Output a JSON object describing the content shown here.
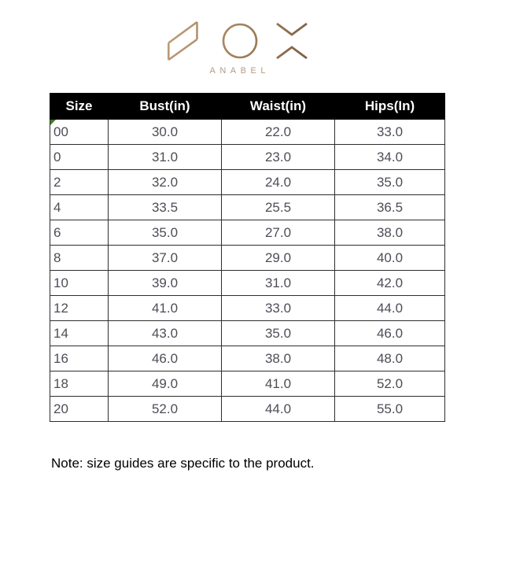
{
  "brand": {
    "logo_text": "NOX",
    "subtitle": "ANABEL",
    "logo_color_start": "#bf9c78",
    "logo_color_end": "#7d5e43",
    "subtitle_color": "#b49a84"
  },
  "size_chart": {
    "columns": [
      "Size",
      "Bust(in)",
      "Waist(in)",
      "Hips(In)"
    ],
    "rows": [
      {
        "size": "00",
        "bust": "30.0",
        "waist": "22.0",
        "hips": "33.0",
        "has_marker": true
      },
      {
        "size": "0",
        "bust": "31.0",
        "waist": "23.0",
        "hips": "34.0"
      },
      {
        "size": "2",
        "bust": "32.0",
        "waist": "24.0",
        "hips": "35.0"
      },
      {
        "size": "4",
        "bust": "33.5",
        "waist": "25.5",
        "hips": "36.5"
      },
      {
        "size": "6",
        "bust": "35.0",
        "waist": "27.0",
        "hips": "38.0"
      },
      {
        "size": "8",
        "bust": "37.0",
        "waist": "29.0",
        "hips": "40.0"
      },
      {
        "size": "10",
        "bust": "39.0",
        "waist": "31.0",
        "hips": "42.0"
      },
      {
        "size": "12",
        "bust": "41.0",
        "waist": "33.0",
        "hips": "44.0"
      },
      {
        "size": "14",
        "bust": "43.0",
        "waist": "35.0",
        "hips": "46.0"
      },
      {
        "size": "16",
        "bust": "46.0",
        "waist": "38.0",
        "hips": "48.0"
      },
      {
        "size": "18",
        "bust": "49.0",
        "waist": "41.0",
        "hips": "52.0"
      },
      {
        "size": "20",
        "bust": "52.0",
        "waist": "44.0",
        "hips": "55.0"
      }
    ],
    "styles": {
      "header_bg": "#000000",
      "header_text": "#ffffff",
      "cell_text": "#4c4e57",
      "border": "#2e2e2e",
      "error_marker": "#3e7d1f"
    }
  },
  "note": {
    "text": "Note: size guides are specific to the product."
  }
}
